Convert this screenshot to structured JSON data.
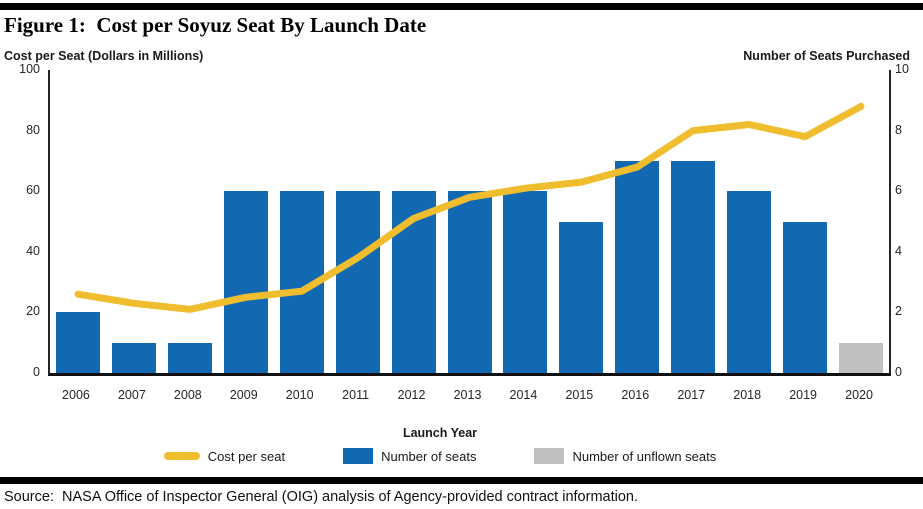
{
  "title": "Figure 1:  Cost per Soyuz Seat By Launch Date",
  "axes": {
    "left_title": "Cost per Seat (Dollars in Millions)",
    "right_title": "Number of Seats Purchased",
    "x_title": "Launch Year",
    "left_ticks": [
      0,
      20,
      40,
      60,
      80,
      100
    ],
    "right_ticks": [
      0,
      2,
      4,
      6,
      8,
      10
    ]
  },
  "legend": [
    {
      "label": "Cost per seat",
      "swatch": "line",
      "color": "#EFBD2D"
    },
    {
      "label": "Number of seats",
      "swatch": "rect",
      "color": "#1268B1"
    },
    {
      "label": "Number of unflown seats",
      "swatch": "rect",
      "color": "#BFBFBF"
    }
  ],
  "source": "Source:  NASA Office of Inspector General (OIG) analysis of Agency-provided contract information.",
  "colors": {
    "line": "#EFBD2D",
    "bar_blue": "#1268B1",
    "bar_gray": "#BFBFBF",
    "black": "#000000"
  },
  "chart_data": {
    "type": "combo-bar-line",
    "categories": [
      "2006",
      "2007",
      "2008",
      "2009",
      "2010",
      "2011",
      "2012",
      "2013",
      "2014",
      "2015",
      "2016",
      "2017",
      "2018",
      "2019",
      "2020"
    ],
    "series": [
      {
        "name": "Cost per seat",
        "type": "line",
        "axis": "left",
        "color": "#EFBD2D",
        "values": [
          26,
          23,
          21,
          25,
          27,
          38,
          51,
          58,
          61,
          63,
          68,
          80,
          82,
          78,
          88
        ]
      },
      {
        "name": "Number of seats",
        "type": "bar",
        "axis": "right",
        "color": "#1268B1",
        "values": [
          2,
          1,
          1,
          6,
          6,
          6,
          6,
          6,
          6,
          5,
          7,
          7,
          6,
          5,
          0
        ]
      },
      {
        "name": "Number of unflown seats",
        "type": "bar",
        "axis": "right",
        "color": "#BFBFBF",
        "values": [
          0,
          0,
          0,
          0,
          0,
          0,
          0,
          0,
          0,
          0,
          0,
          0,
          0,
          0,
          1
        ]
      }
    ],
    "title": "Cost per Soyuz Seat By Launch Date",
    "xlabel": "Launch Year",
    "ylabel_left": "Cost per Seat (Dollars in Millions)",
    "ylabel_right": "Number of Seats Purchased",
    "left_ylim": [
      0,
      100
    ],
    "right_ylim": [
      0,
      10
    ],
    "grid": false,
    "legend_position": "bottom"
  }
}
